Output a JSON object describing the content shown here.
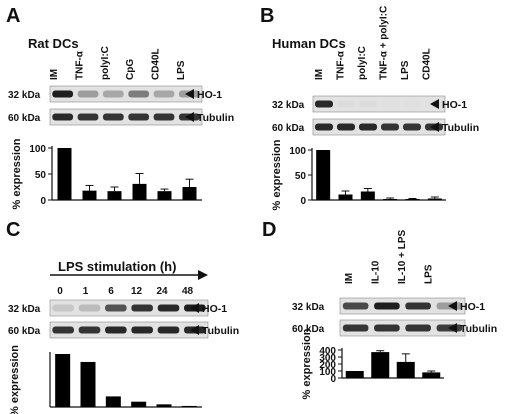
{
  "panels": [
    {
      "id": "A",
      "letter": "A",
      "title": "Rat DCs",
      "lanes": [
        "IM",
        "TNF-α",
        "polyI:C",
        "CpG",
        "CD40L",
        "LPS"
      ],
      "blots": [
        {
          "kda": "32 kDa",
          "protein": "HO-1",
          "intensity": [
            0.95,
            0.35,
            0.3,
            0.5,
            0.3,
            0.35
          ]
        },
        {
          "kda": "60 kDa",
          "protein": "Tubulin",
          "intensity": [
            0.9,
            0.85,
            0.85,
            0.85,
            0.85,
            0.85
          ]
        }
      ],
      "ylabel": "% expression",
      "yticks": [
        0,
        50,
        100
      ],
      "ymax": 100,
      "values": [
        100,
        18,
        17,
        31,
        17,
        25
      ],
      "errors": [
        0,
        10,
        8,
        20,
        4,
        15
      ]
    },
    {
      "id": "B",
      "letter": "B",
      "title": "Human DCs",
      "lanes": [
        "IM",
        "TNF-α",
        "polyI:C",
        "TNF-α + polyI:C",
        "LPS",
        "CD40L"
      ],
      "blots": [
        {
          "kda": "32 kDa",
          "protein": "HO-1",
          "intensity": [
            0.9,
            0.05,
            0.05,
            0.03,
            0.03,
            0.03
          ]
        },
        {
          "kda": "60 kDa",
          "protein": "Tubulin",
          "intensity": [
            0.9,
            0.9,
            0.9,
            0.85,
            0.85,
            0.85
          ]
        }
      ],
      "ylabel": "% expression",
      "yticks": [
        0,
        50,
        100
      ],
      "ymax": 100,
      "values": [
        100,
        11,
        17,
        2,
        2,
        3
      ],
      "errors": [
        0,
        7,
        6,
        2,
        1,
        3
      ]
    },
    {
      "id": "C",
      "letter": "C",
      "title": "LPS stimulation (h)",
      "lanes": [
        "0",
        "1",
        "6",
        "12",
        "24",
        "48"
      ],
      "blots": [
        {
          "kda": "32 kDa",
          "protein": "HO-1",
          "intensity": [
            0.15,
            0.2,
            0.7,
            0.85,
            0.9,
            0.95
          ]
        },
        {
          "kda": "60 kDa",
          "protein": "Tubulin",
          "intensity": [
            0.85,
            0.85,
            0.9,
            0.9,
            0.9,
            0.9
          ]
        }
      ],
      "ylabel": "% expression",
      "yticks": [],
      "ymax": 100,
      "values": [
        100,
        85,
        20,
        10,
        5,
        2
      ],
      "errors": [
        0,
        0,
        0,
        0,
        0,
        0
      ]
    },
    {
      "id": "D",
      "letter": "D",
      "title": "",
      "lanes": [
        "IM",
        "IL-10",
        "IL-10 + LPS",
        "LPS"
      ],
      "blots": [
        {
          "kda": "32 kDa",
          "protein": "HO-1",
          "intensity": [
            0.75,
            0.95,
            0.85,
            0.35
          ]
        },
        {
          "kda": "60 kDa",
          "protein": "Tubulin",
          "intensity": [
            0.85,
            0.85,
            0.85,
            0.8
          ]
        }
      ],
      "ylabel": "% expression",
      "yticks": [
        0,
        100,
        200,
        300,
        400
      ],
      "ymax": 400,
      "values": [
        100,
        370,
        230,
        80
      ],
      "errors": [
        0,
        20,
        115,
        20
      ]
    }
  ],
  "colors": {
    "ink": "#111111",
    "bar": "#000000",
    "blot_bg": "#e2e2e2"
  }
}
